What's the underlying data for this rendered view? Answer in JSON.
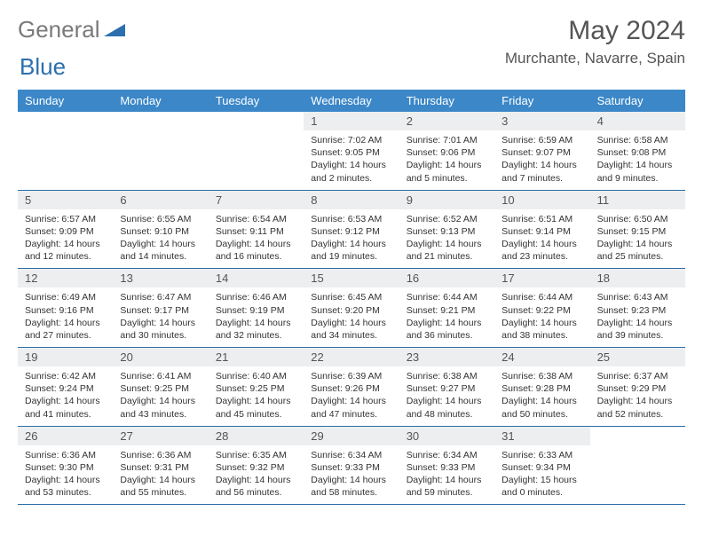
{
  "brand": {
    "part1": "General",
    "part2": "Blue"
  },
  "colors": {
    "header_bg": "#3b87c8",
    "header_text": "#ffffff",
    "daynum_bg": "#eceeef",
    "border": "#2a6da8",
    "logo_gray": "#7a7a7a",
    "logo_blue": "#2b6fae"
  },
  "title": "May 2024",
  "location": "Murchante, Navarre, Spain",
  "weekdays": [
    "Sunday",
    "Monday",
    "Tuesday",
    "Wednesday",
    "Thursday",
    "Friday",
    "Saturday"
  ],
  "startOffset": 3,
  "days": [
    {
      "n": 1,
      "sunrise": "7:02 AM",
      "sunset": "9:05 PM",
      "daylight": "14 hours and 2 minutes."
    },
    {
      "n": 2,
      "sunrise": "7:01 AM",
      "sunset": "9:06 PM",
      "daylight": "14 hours and 5 minutes."
    },
    {
      "n": 3,
      "sunrise": "6:59 AM",
      "sunset": "9:07 PM",
      "daylight": "14 hours and 7 minutes."
    },
    {
      "n": 4,
      "sunrise": "6:58 AM",
      "sunset": "9:08 PM",
      "daylight": "14 hours and 9 minutes."
    },
    {
      "n": 5,
      "sunrise": "6:57 AM",
      "sunset": "9:09 PM",
      "daylight": "14 hours and 12 minutes."
    },
    {
      "n": 6,
      "sunrise": "6:55 AM",
      "sunset": "9:10 PM",
      "daylight": "14 hours and 14 minutes."
    },
    {
      "n": 7,
      "sunrise": "6:54 AM",
      "sunset": "9:11 PM",
      "daylight": "14 hours and 16 minutes."
    },
    {
      "n": 8,
      "sunrise": "6:53 AM",
      "sunset": "9:12 PM",
      "daylight": "14 hours and 19 minutes."
    },
    {
      "n": 9,
      "sunrise": "6:52 AM",
      "sunset": "9:13 PM",
      "daylight": "14 hours and 21 minutes."
    },
    {
      "n": 10,
      "sunrise": "6:51 AM",
      "sunset": "9:14 PM",
      "daylight": "14 hours and 23 minutes."
    },
    {
      "n": 11,
      "sunrise": "6:50 AM",
      "sunset": "9:15 PM",
      "daylight": "14 hours and 25 minutes."
    },
    {
      "n": 12,
      "sunrise": "6:49 AM",
      "sunset": "9:16 PM",
      "daylight": "14 hours and 27 minutes."
    },
    {
      "n": 13,
      "sunrise": "6:47 AM",
      "sunset": "9:17 PM",
      "daylight": "14 hours and 30 minutes."
    },
    {
      "n": 14,
      "sunrise": "6:46 AM",
      "sunset": "9:19 PM",
      "daylight": "14 hours and 32 minutes."
    },
    {
      "n": 15,
      "sunrise": "6:45 AM",
      "sunset": "9:20 PM",
      "daylight": "14 hours and 34 minutes."
    },
    {
      "n": 16,
      "sunrise": "6:44 AM",
      "sunset": "9:21 PM",
      "daylight": "14 hours and 36 minutes."
    },
    {
      "n": 17,
      "sunrise": "6:44 AM",
      "sunset": "9:22 PM",
      "daylight": "14 hours and 38 minutes."
    },
    {
      "n": 18,
      "sunrise": "6:43 AM",
      "sunset": "9:23 PM",
      "daylight": "14 hours and 39 minutes."
    },
    {
      "n": 19,
      "sunrise": "6:42 AM",
      "sunset": "9:24 PM",
      "daylight": "14 hours and 41 minutes."
    },
    {
      "n": 20,
      "sunrise": "6:41 AM",
      "sunset": "9:25 PM",
      "daylight": "14 hours and 43 minutes."
    },
    {
      "n": 21,
      "sunrise": "6:40 AM",
      "sunset": "9:25 PM",
      "daylight": "14 hours and 45 minutes."
    },
    {
      "n": 22,
      "sunrise": "6:39 AM",
      "sunset": "9:26 PM",
      "daylight": "14 hours and 47 minutes."
    },
    {
      "n": 23,
      "sunrise": "6:38 AM",
      "sunset": "9:27 PM",
      "daylight": "14 hours and 48 minutes."
    },
    {
      "n": 24,
      "sunrise": "6:38 AM",
      "sunset": "9:28 PM",
      "daylight": "14 hours and 50 minutes."
    },
    {
      "n": 25,
      "sunrise": "6:37 AM",
      "sunset": "9:29 PM",
      "daylight": "14 hours and 52 minutes."
    },
    {
      "n": 26,
      "sunrise": "6:36 AM",
      "sunset": "9:30 PM",
      "daylight": "14 hours and 53 minutes."
    },
    {
      "n": 27,
      "sunrise": "6:36 AM",
      "sunset": "9:31 PM",
      "daylight": "14 hours and 55 minutes."
    },
    {
      "n": 28,
      "sunrise": "6:35 AM",
      "sunset": "9:32 PM",
      "daylight": "14 hours and 56 minutes."
    },
    {
      "n": 29,
      "sunrise": "6:34 AM",
      "sunset": "9:33 PM",
      "daylight": "14 hours and 58 minutes."
    },
    {
      "n": 30,
      "sunrise": "6:34 AM",
      "sunset": "9:33 PM",
      "daylight": "14 hours and 59 minutes."
    },
    {
      "n": 31,
      "sunrise": "6:33 AM",
      "sunset": "9:34 PM",
      "daylight": "15 hours and 0 minutes."
    }
  ]
}
